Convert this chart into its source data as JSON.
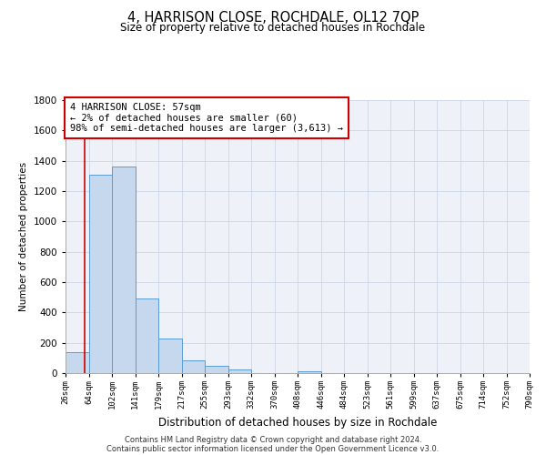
{
  "title": "4, HARRISON CLOSE, ROCHDALE, OL12 7QP",
  "subtitle": "Size of property relative to detached houses in Rochdale",
  "xlabel": "Distribution of detached houses by size in Rochdale",
  "ylabel": "Number of detached properties",
  "bin_labels": [
    "26sqm",
    "64sqm",
    "102sqm",
    "141sqm",
    "179sqm",
    "217sqm",
    "255sqm",
    "293sqm",
    "332sqm",
    "370sqm",
    "408sqm",
    "446sqm",
    "484sqm",
    "523sqm",
    "561sqm",
    "599sqm",
    "637sqm",
    "675sqm",
    "714sqm",
    "752sqm",
    "790sqm"
  ],
  "bar_values": [
    140,
    1310,
    1360,
    490,
    230,
    85,
    50,
    25,
    0,
    0,
    15,
    0,
    0,
    0,
    0,
    0,
    0,
    0,
    0,
    0
  ],
  "bar_color": "#c5d8ed",
  "bar_edge_color": "#5b9bd5",
  "annotation_line1": "4 HARRISON CLOSE: 57sqm",
  "annotation_line2": "← 2% of detached houses are smaller (60)",
  "annotation_line3": "98% of semi-detached houses are larger (3,613) →",
  "annotation_box_color": "#ffffff",
  "annotation_box_edge": "#cc0000",
  "red_line_x": 0.83,
  "ylim": [
    0,
    1800
  ],
  "yticks": [
    0,
    200,
    400,
    600,
    800,
    1000,
    1200,
    1400,
    1600,
    1800
  ],
  "footnote1": "Contains HM Land Registry data © Crown copyright and database right 2024.",
  "footnote2": "Contains public sector information licensed under the Open Government Licence v3.0.",
  "background_color": "#ffffff",
  "plot_background": "#eef2f8"
}
